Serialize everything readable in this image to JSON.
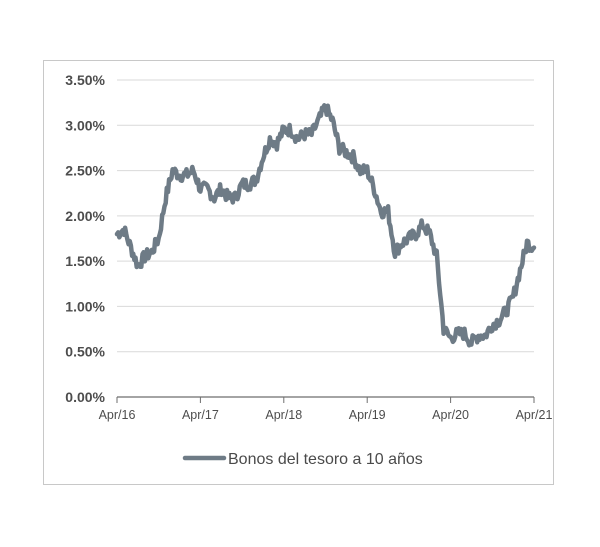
{
  "chart_data": {
    "type": "line",
    "title": "",
    "xlabel": "",
    "ylabel": "",
    "x_ticks": [
      "Apr/16",
      "Apr/17",
      "Apr/18",
      "Apr/19",
      "Apr/20",
      "Apr/21"
    ],
    "y_ticks": [
      "0.00%",
      "0.50%",
      "1.00%",
      "1.50%",
      "2.00%",
      "2.50%",
      "3.00%",
      "3.50%"
    ],
    "ylim": [
      0,
      3.5
    ],
    "xlim": [
      "2016-04",
      "2021-04"
    ],
    "grid": true,
    "legend_position": "bottom-center",
    "series": [
      {
        "name": "Bonos del tesoro a 10 años",
        "color": "#6e7b86",
        "points": [
          [
            "2016-04",
            1.8
          ],
          [
            "2016-05",
            1.85
          ],
          [
            "2016-06",
            1.65
          ],
          [
            "2016-07",
            1.45
          ],
          [
            "2016-08",
            1.55
          ],
          [
            "2016-09",
            1.6
          ],
          [
            "2016-10",
            1.75
          ],
          [
            "2016-11",
            2.2
          ],
          [
            "2016-12",
            2.5
          ],
          [
            "2017-01",
            2.45
          ],
          [
            "2017-02",
            2.45
          ],
          [
            "2017-03",
            2.5
          ],
          [
            "2017-04",
            2.3
          ],
          [
            "2017-05",
            2.3
          ],
          [
            "2017-06",
            2.2
          ],
          [
            "2017-07",
            2.3
          ],
          [
            "2017-08",
            2.2
          ],
          [
            "2017-09",
            2.2
          ],
          [
            "2017-10",
            2.35
          ],
          [
            "2017-11",
            2.35
          ],
          [
            "2017-12",
            2.4
          ],
          [
            "2018-01",
            2.65
          ],
          [
            "2018-02",
            2.85
          ],
          [
            "2018-03",
            2.8
          ],
          [
            "2018-04",
            2.95
          ],
          [
            "2018-05",
            2.95
          ],
          [
            "2018-06",
            2.85
          ],
          [
            "2018-07",
            2.9
          ],
          [
            "2018-08",
            2.9
          ],
          [
            "2018-09",
            3.05
          ],
          [
            "2018-10",
            3.2
          ],
          [
            "2018-11",
            3.05
          ],
          [
            "2018-12",
            2.75
          ],
          [
            "2019-01",
            2.7
          ],
          [
            "2019-02",
            2.65
          ],
          [
            "2019-03",
            2.5
          ],
          [
            "2019-04",
            2.5
          ],
          [
            "2019-05",
            2.3
          ],
          [
            "2019-06",
            2.05
          ],
          [
            "2019-07",
            2.05
          ],
          [
            "2019-08",
            1.6
          ],
          [
            "2019-09",
            1.7
          ],
          [
            "2019-10",
            1.75
          ],
          [
            "2019-11",
            1.8
          ],
          [
            "2019-12",
            1.9
          ],
          [
            "2020-01",
            1.8
          ],
          [
            "2020-02",
            1.55
          ],
          [
            "2020-03",
            0.75
          ],
          [
            "2020-04",
            0.65
          ],
          [
            "2020-05",
            0.7
          ],
          [
            "2020-06",
            0.7
          ],
          [
            "2020-07",
            0.6
          ],
          [
            "2020-08",
            0.68
          ],
          [
            "2020-09",
            0.68
          ],
          [
            "2020-10",
            0.8
          ],
          [
            "2020-11",
            0.85
          ],
          [
            "2020-12",
            0.95
          ],
          [
            "2021-01",
            1.1
          ],
          [
            "2021-02",
            1.4
          ],
          [
            "2021-03",
            1.7
          ],
          [
            "2021-04",
            1.65
          ]
        ]
      }
    ]
  }
}
